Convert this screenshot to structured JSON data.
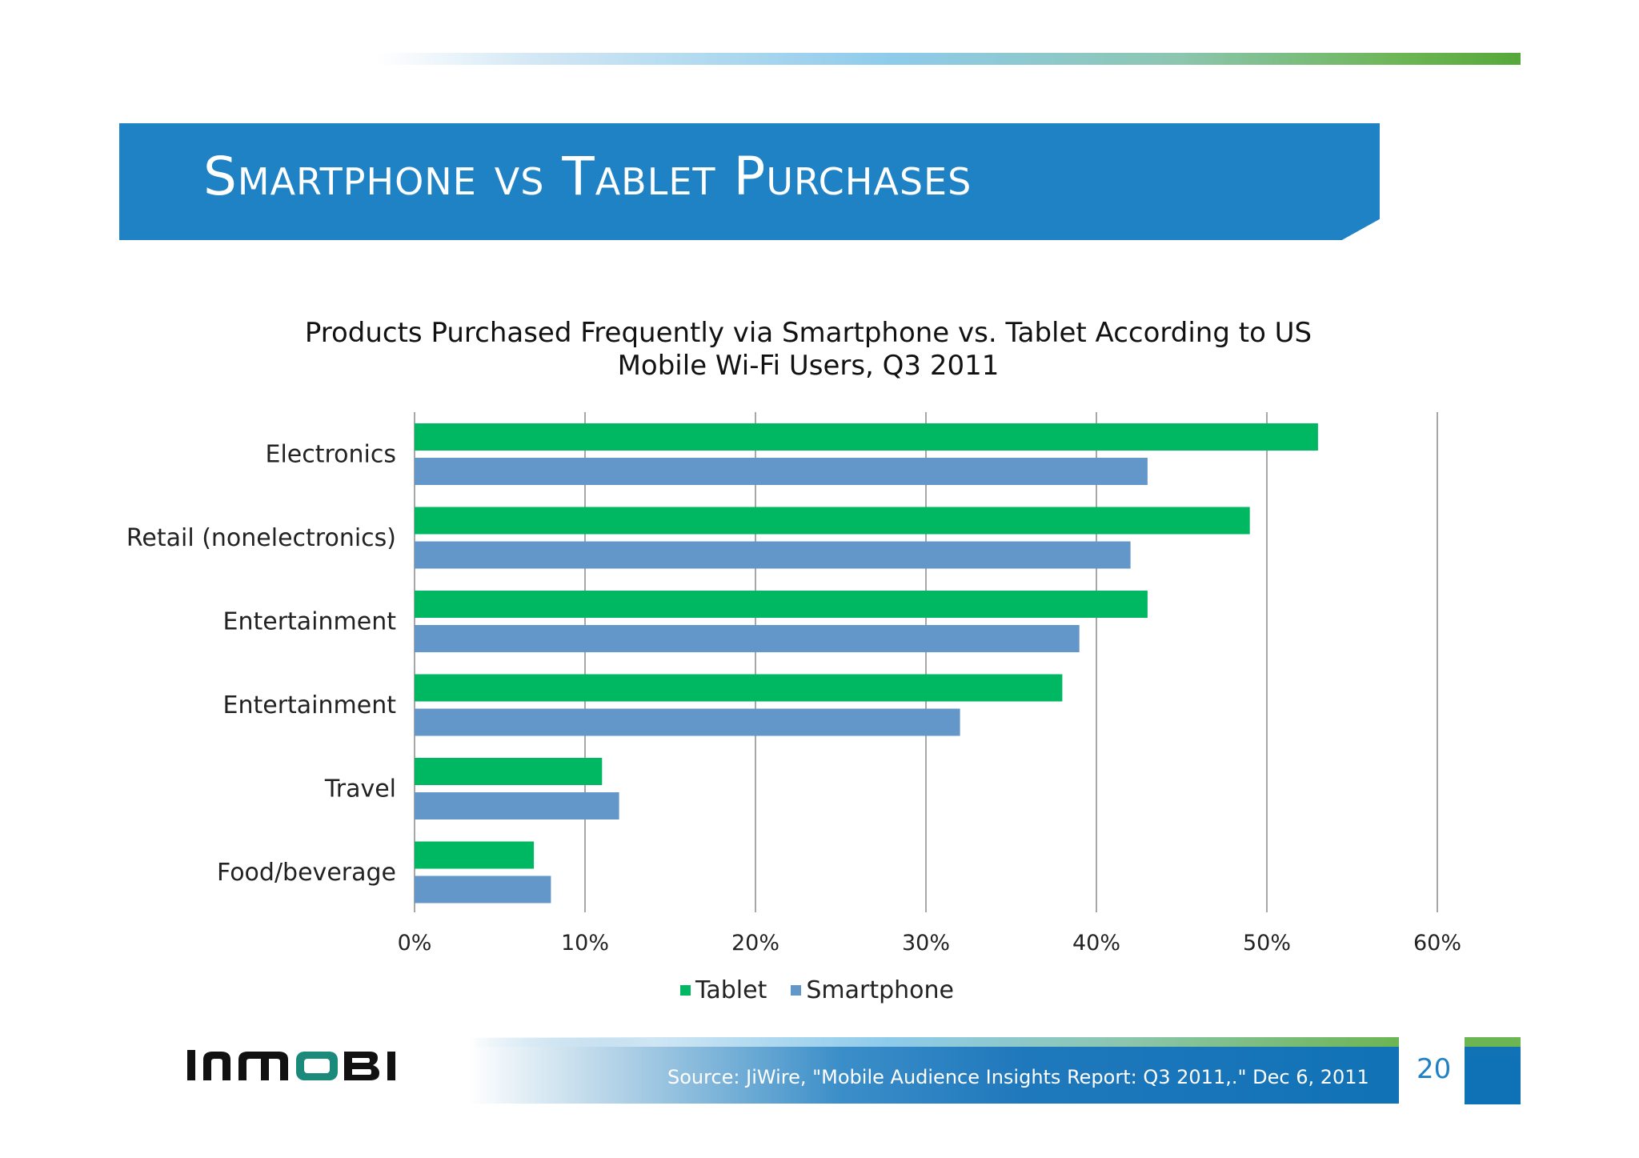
{
  "slide": {
    "title": "Smartphone vs Tablet Purchases",
    "source": "Source: JiWire, \"Mobile Audience Insights Report: Q3 2011,.\"  Dec 6, 2011",
    "page_number": "20",
    "logo_text": "INMOBI"
  },
  "chart_data": {
    "type": "bar",
    "orientation": "horizontal",
    "title_line1": "Products Purchased Frequently via Smartphone vs. Tablet  According to US",
    "title_line2": "Mobile Wi-Fi Users, Q3 2011",
    "categories": [
      "Electronics",
      "Retail (nonelectronics)",
      "Entertainment",
      "Entertainment",
      "Travel",
      "Food/beverage"
    ],
    "series": [
      {
        "name": "Tablet",
        "color": "#00b862",
        "values": [
          53,
          49,
          43,
          38,
          11,
          7
        ]
      },
      {
        "name": "Smartphone",
        "color": "#6497c9",
        "values": [
          43,
          42,
          39,
          32,
          12,
          8
        ]
      }
    ],
    "xlim": [
      0,
      60
    ],
    "xticks": [
      "0%",
      "10%",
      "20%",
      "30%",
      "40%",
      "50%",
      "60%"
    ],
    "grid": true,
    "legend_position": "bottom"
  }
}
